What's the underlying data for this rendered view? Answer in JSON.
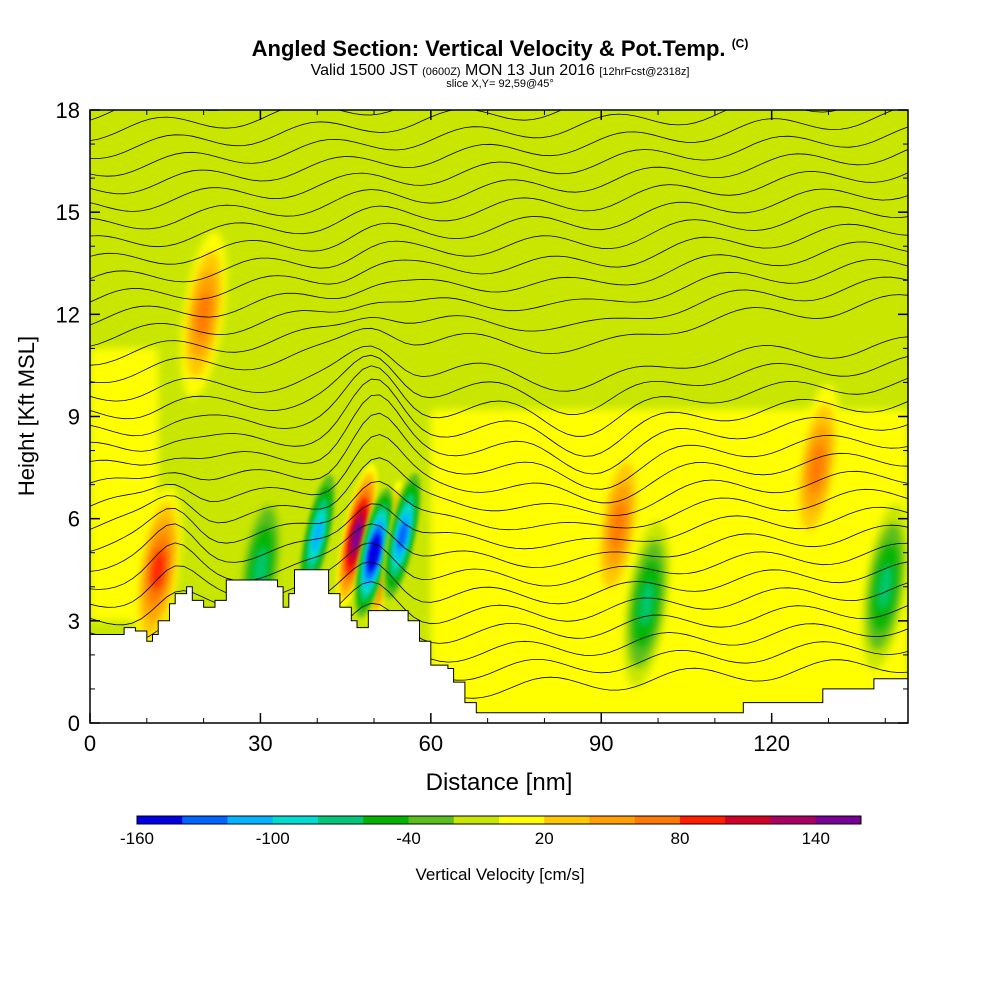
{
  "header": {
    "title": "Angled Section: Vertical Velocity & Pot.Temp.",
    "title_suffix": "(C)",
    "valid_prefix": "Valid 1500 JST",
    "valid_utc": "(0600Z)",
    "valid_date": "MON 13 Jun 2016",
    "valid_fcst": "[12hrFcst@2318z]",
    "slice": "slice X,Y= 92,59@45°"
  },
  "chart_data": {
    "type": "heatmap",
    "xlabel": "Distance [nm]",
    "ylabel": "Height [Kft MSL]",
    "xlim": [
      0,
      144
    ],
    "ylim": [
      0,
      18
    ],
    "x_ticks": [
      "0",
      "30",
      "60",
      "90",
      "120"
    ],
    "y_ticks": [
      "0",
      "3",
      "6",
      "9",
      "12",
      "15",
      "18"
    ],
    "colorbar": {
      "label": "Vertical Velocity [cm/s]",
      "tick_labels": [
        "-160",
        "-100",
        "-40",
        "20",
        "80",
        "140"
      ],
      "colors": [
        "#0000e6",
        "#0064ff",
        "#00b4ff",
        "#00dcd2",
        "#00c878",
        "#00b400",
        "#5abe1e",
        "#c8e600",
        "#ffff00",
        "#ffc800",
        "#ffa000",
        "#ff7800",
        "#ff1e00",
        "#d20028",
        "#aa0064",
        "#780096"
      ]
    },
    "background_color": "#c8e600",
    "updraft_cores": [
      {
        "x": 47,
        "y": 5.5,
        "peak": 140
      },
      {
        "x": 52,
        "y": 5.0,
        "peak": 120
      },
      {
        "x": 12,
        "y": 4.5,
        "peak": 80
      },
      {
        "x": 93,
        "y": 5.8,
        "peak": 60
      },
      {
        "x": 128,
        "y": 7.5,
        "peak": 50
      },
      {
        "x": 20,
        "y": 12.0,
        "peak": 60
      }
    ],
    "downdraft_cores": [
      {
        "x": 50,
        "y": 5.0,
        "peak": -160
      },
      {
        "x": 55,
        "y": 5.5,
        "peak": -120
      },
      {
        "x": 40,
        "y": 5.5,
        "peak": -100
      },
      {
        "x": 30,
        "y": 4.5,
        "peak": -60
      },
      {
        "x": 98,
        "y": 3.5,
        "peak": -50
      },
      {
        "x": 140,
        "y": 4.0,
        "peak": -50
      }
    ],
    "terrain_kft": [
      [
        0,
        2.6
      ],
      [
        5,
        2.6
      ],
      [
        6,
        2.8
      ],
      [
        8,
        2.7
      ],
      [
        10,
        2.4
      ],
      [
        11,
        2.6
      ],
      [
        12,
        3.0
      ],
      [
        14,
        3.5
      ],
      [
        15,
        3.8
      ],
      [
        17,
        4.0
      ],
      [
        18,
        3.6
      ],
      [
        20,
        3.4
      ],
      [
        22,
        3.6
      ],
      [
        24,
        4.2
      ],
      [
        30,
        4.2
      ],
      [
        33,
        4.0
      ],
      [
        34,
        3.4
      ],
      [
        35,
        3.8
      ],
      [
        36,
        4.5
      ],
      [
        40,
        4.5
      ],
      [
        42,
        3.8
      ],
      [
        44,
        3.4
      ],
      [
        46,
        3.0
      ],
      [
        47,
        2.8
      ],
      [
        49,
        3.3
      ],
      [
        52,
        3.3
      ],
      [
        54,
        3.3
      ],
      [
        56,
        3.0
      ],
      [
        58,
        2.4
      ],
      [
        60,
        1.7
      ],
      [
        63,
        1.6
      ],
      [
        64,
        1.2
      ],
      [
        66,
        0.6
      ],
      [
        68,
        0.3
      ],
      [
        92,
        0.3
      ],
      [
        114,
        0.3
      ],
      [
        115,
        0.6
      ],
      [
        126,
        0.6
      ],
      [
        129,
        1.0
      ],
      [
        134,
        1.0
      ],
      [
        138,
        1.3
      ],
      [
        144,
        1.3
      ]
    ],
    "isentrope_label": "Pot.Temp. contours"
  }
}
